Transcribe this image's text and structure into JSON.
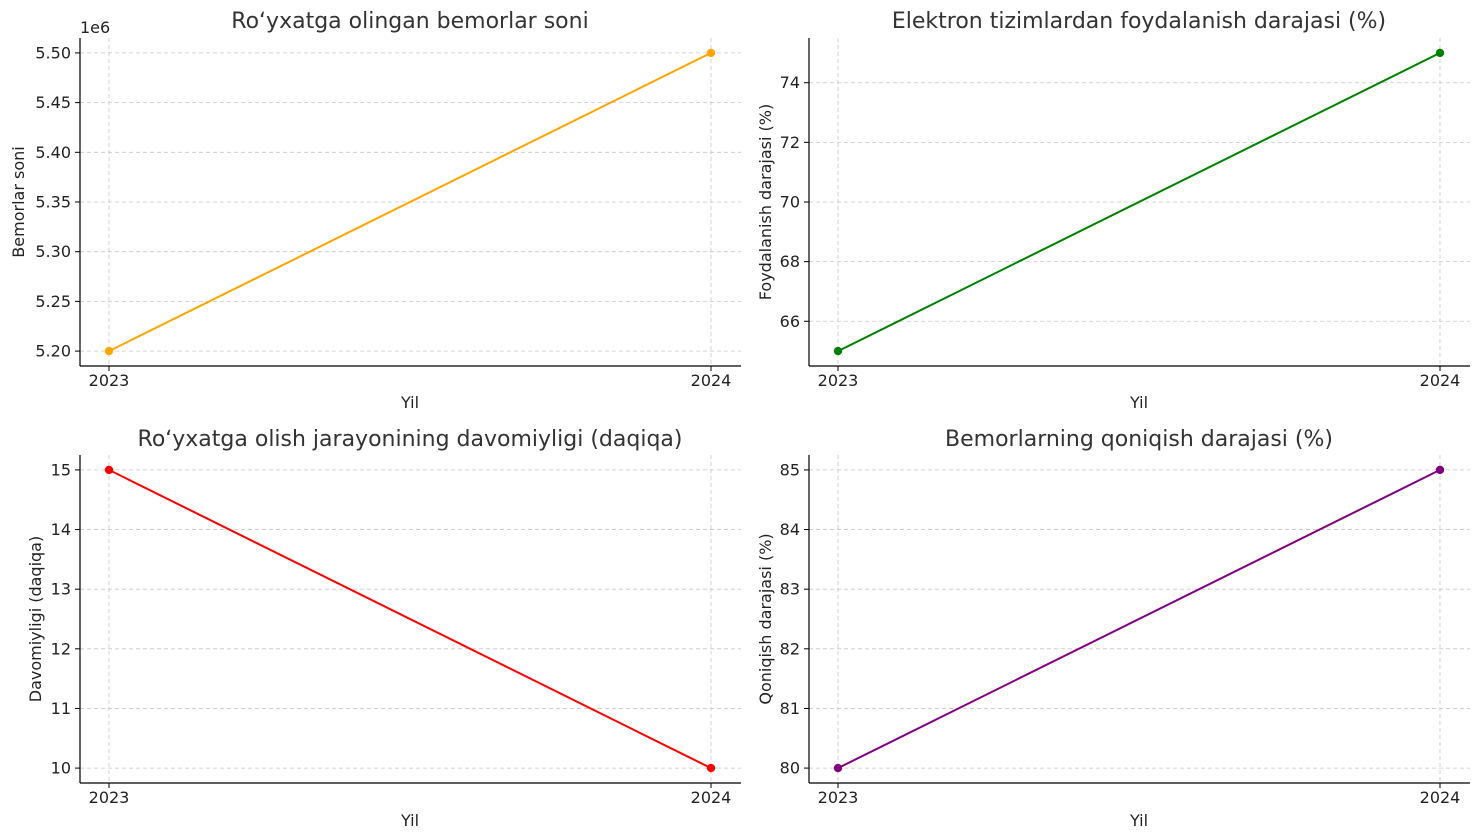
{
  "chart_data": [
    {
      "type": "line",
      "title": "Roʻyxatga olingan bemorlar soni",
      "xlabel": "Yil",
      "ylabel": "Bemorlar soni",
      "x": [
        "2023",
        "2024"
      ],
      "y_offset_label": "1e6",
      "yticks": [
        5.2,
        5.25,
        5.3,
        5.35,
        5.4,
        5.45,
        5.5
      ],
      "ytick_labels": [
        "5.20",
        "5.25",
        "5.30",
        "5.35",
        "5.40",
        "5.45",
        "5.50"
      ],
      "ylim": [
        5.185,
        5.515
      ],
      "grid": true,
      "series": [
        {
          "color": "#FFA500",
          "values": [
            5.2,
            5.5
          ]
        }
      ]
    },
    {
      "type": "line",
      "title": "Elektron tizimlardan foydalanish darajasi (%)",
      "xlabel": "Yil",
      "ylabel": "Foydalanish darajasi (%)",
      "x": [
        "2023",
        "2024"
      ],
      "yticks": [
        66,
        68,
        70,
        72,
        74
      ],
      "ytick_labels": [
        "66",
        "68",
        "70",
        "72",
        "74"
      ],
      "ylim": [
        64.5,
        75.5
      ],
      "grid": true,
      "series": [
        {
          "color": "#008000",
          "values": [
            65,
            75
          ]
        }
      ]
    },
    {
      "type": "line",
      "title": "Roʻyxatga olish jarayonining davomiyligi (daqiqa)",
      "xlabel": "Yil",
      "ylabel": "Davomiyligi (daqiqa)",
      "x": [
        "2023",
        "2024"
      ],
      "yticks": [
        10,
        11,
        12,
        13,
        14,
        15
      ],
      "ytick_labels": [
        "10",
        "11",
        "12",
        "13",
        "14",
        "15"
      ],
      "ylim": [
        9.75,
        15.25
      ],
      "grid": true,
      "series": [
        {
          "color": "#FF0000",
          "values": [
            15,
            10
          ]
        }
      ]
    },
    {
      "type": "line",
      "title": "Bemorlarning qoniqish darajasi (%)",
      "xlabel": "Yil",
      "ylabel": "Qoniqish darajasi (%)",
      "x": [
        "2023",
        "2024"
      ],
      "yticks": [
        80,
        81,
        82,
        83,
        84,
        85
      ],
      "ytick_labels": [
        "80",
        "81",
        "82",
        "83",
        "84",
        "85"
      ],
      "ylim": [
        79.75,
        85.25
      ],
      "grid": true,
      "series": [
        {
          "color": "#800080",
          "values": [
            80,
            85
          ]
        }
      ]
    }
  ]
}
